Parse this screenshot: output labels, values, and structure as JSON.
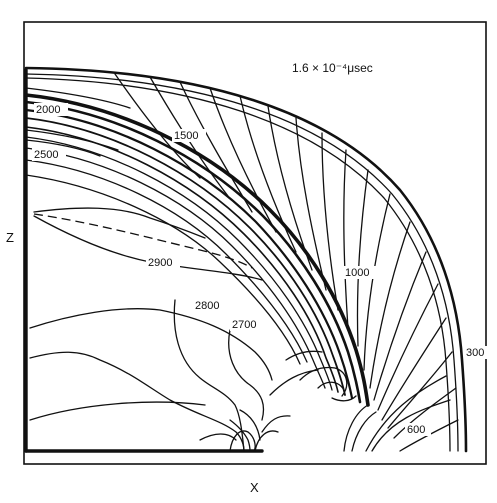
{
  "figure": {
    "time_label": "1.6 × 10⁻⁴μsec",
    "x_axis_label": "X",
    "z_axis_label": "Z",
    "contour_labels": {
      "c2000": "2000",
      "c2500": "2500",
      "c1500": "1500",
      "c2900": "2900",
      "c1000": "1000",
      "c2800": "2800",
      "c2700": "2700",
      "c300": "300",
      "c600": "600"
    }
  }
}
